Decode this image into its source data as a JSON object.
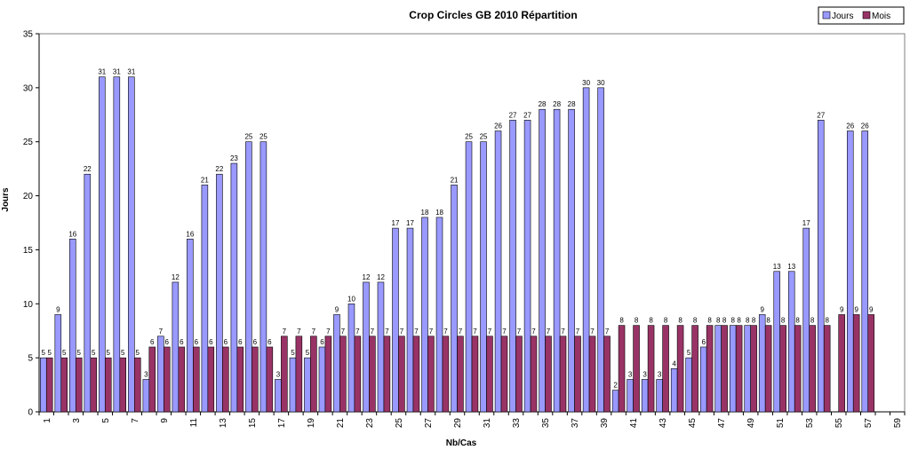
{
  "chart_data": {
    "type": "bar",
    "title": "Crop Circles GB 2010 Répartition",
    "xlabel": "Nb/Cas",
    "ylabel": "Jours",
    "ylim": [
      0,
      35
    ],
    "yticks": [
      0,
      5,
      10,
      15,
      20,
      25,
      30,
      35
    ],
    "categories": [
      1,
      2,
      3,
      4,
      5,
      6,
      7,
      8,
      9,
      10,
      11,
      12,
      13,
      14,
      15,
      16,
      17,
      18,
      19,
      20,
      21,
      22,
      23,
      24,
      25,
      26,
      27,
      28,
      29,
      30,
      31,
      32,
      33,
      34,
      35,
      36,
      37,
      38,
      39,
      40,
      41,
      42,
      43,
      44,
      45,
      46,
      47,
      48,
      49,
      50,
      51,
      52,
      53,
      54,
      55,
      56,
      57,
      58,
      59
    ],
    "tick_labels": [
      "1",
      "3",
      "5",
      "7",
      "9",
      "11",
      "13",
      "15",
      "17",
      "19",
      "21",
      "23",
      "25",
      "27",
      "29",
      "31",
      "33",
      "35",
      "37",
      "39",
      "41",
      "43",
      "45",
      "47",
      "49",
      "51",
      "53",
      "55",
      "57",
      "59"
    ],
    "grid": false,
    "legend_position": "top-right",
    "series": [
      {
        "name": "Jours",
        "color": "#9999ff",
        "values": [
          5,
          9,
          16,
          22,
          31,
          31,
          31,
          3,
          7,
          12,
          16,
          21,
          22,
          23,
          25,
          25,
          3,
          5,
          5,
          6,
          9,
          10,
          12,
          12,
          17,
          17,
          18,
          18,
          21,
          25,
          25,
          26,
          27,
          27,
          28,
          28,
          28,
          30,
          30,
          2,
          3,
          3,
          3,
          4,
          5,
          6,
          8,
          8,
          8,
          9,
          13,
          13,
          17,
          27,
          null,
          26,
          26,
          null,
          null
        ]
      },
      {
        "name": "Mois",
        "color": "#993366",
        "values": [
          5,
          5,
          5,
          5,
          5,
          5,
          5,
          6,
          6,
          6,
          6,
          6,
          6,
          6,
          6,
          6,
          7,
          7,
          7,
          7,
          7,
          7,
          7,
          7,
          7,
          7,
          7,
          7,
          7,
          7,
          7,
          7,
          7,
          7,
          7,
          7,
          7,
          7,
          7,
          8,
          8,
          8,
          8,
          8,
          8,
          8,
          8,
          8,
          8,
          8,
          8,
          8,
          8,
          8,
          9,
          9,
          9,
          null,
          null
        ]
      }
    ]
  }
}
